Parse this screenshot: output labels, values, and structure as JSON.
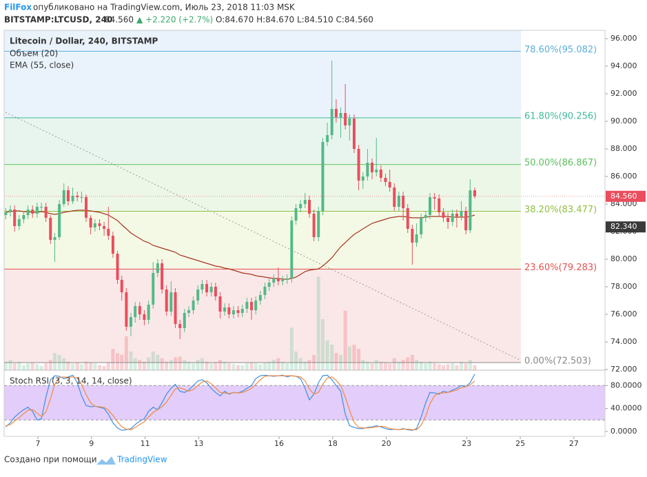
{
  "header": {
    "brand": "FilFox",
    "published": "опубликовано на TradingView.com, Июль 23, 2018 11:03 MSK",
    "symbol": "BITSTAMP:LTCUSD, 240",
    "price": "84.560",
    "change": "▲ +2.220 (+2.7%)",
    "ohlc": "O:84.670 H:84.670 L:84.510 C:84.560"
  },
  "chart_data": {
    "type": "candlestick",
    "title": "Litecoin / Dollar, 240, BITSTAMP",
    "up_color": "#53b987",
    "down_color": "#eb4d5c",
    "x": [
      5.8,
      5.97,
      6.13,
      6.3,
      6.47,
      6.63,
      6.8,
      6.97,
      7.13,
      7.3,
      7.47,
      7.63,
      7.8,
      7.97,
      8.13,
      8.3,
      8.47,
      8.63,
      8.8,
      8.97,
      9.13,
      9.3,
      9.47,
      9.63,
      9.8,
      9.97,
      10.13,
      10.3,
      10.47,
      10.63,
      10.8,
      10.97,
      11.13,
      11.3,
      11.47,
      11.63,
      11.8,
      11.97,
      12.13,
      12.3,
      12.47,
      12.63,
      12.8,
      12.97,
      13.13,
      13.3,
      13.47,
      13.63,
      13.8,
      13.97,
      14.13,
      14.3,
      14.47,
      14.63,
      14.8,
      14.97,
      15.13,
      15.3,
      15.47,
      15.63,
      15.8,
      15.97,
      16.13,
      16.3,
      16.47,
      16.63,
      16.8,
      16.97,
      17.13,
      17.3,
      17.47,
      17.63,
      17.8,
      17.97,
      18.13,
      18.3,
      18.47,
      18.63,
      18.8,
      18.97,
      19.13,
      19.3,
      19.47,
      19.63,
      19.8,
      19.97,
      20.13,
      20.3,
      20.47,
      20.63,
      20.8,
      20.97,
      21.13,
      21.3,
      21.47,
      21.63,
      21.8,
      21.97,
      22.13,
      22.3,
      22.47,
      22.63,
      22.8,
      22.97,
      23.13,
      23.3
    ],
    "open": [
      83.2,
      83.4,
      83.6,
      82.4,
      82.9,
      83.2,
      83.6,
      83.3,
      83.8,
      83.8,
      83.0,
      81.4,
      81.6,
      84.0,
      85.0,
      84.2,
      84.6,
      84.5,
      84.5,
      83.0,
      82.3,
      82.6,
      82.4,
      82.2,
      81.7,
      80.4,
      78.5,
      77.6,
      75.1,
      75.8,
      76.6,
      76.0,
      75.6,
      76.7,
      79.0,
      79.7,
      77.8,
      76.2,
      77.6,
      75.3,
      75.0,
      76.1,
      76.3,
      77.0,
      77.8,
      78.2,
      77.6,
      78.0,
      77.3,
      76.2,
      76.5,
      76.0,
      76.3,
      76.1,
      76.4,
      76.9,
      76.3,
      77.0,
      77.4,
      78.0,
      78.3,
      78.6,
      78.4,
      78.5,
      78.6,
      82.8,
      83.7,
      84.0,
      84.3,
      83.3,
      81.6,
      83.5,
      88.5,
      89.0,
      90.9,
      90.3,
      90.6,
      89.7,
      90.2,
      88.0,
      85.7,
      86.0,
      87.0,
      86.3,
      86.5,
      85.9,
      85.6,
      85.2,
      83.8,
      84.6,
      83.7,
      82.2,
      81.2,
      81.8,
      83.0,
      83.2,
      84.5,
      84.4,
      83.4,
      83.0,
      82.7,
      83.3,
      83.1,
      83.5,
      82.1,
      85.0
    ],
    "high": [
      83.7,
      83.9,
      83.9,
      83.2,
      83.5,
      83.9,
      83.9,
      84.1,
      84.1,
      84.1,
      83.2,
      81.9,
      84.3,
      85.5,
      85.3,
      85.2,
      84.9,
      84.9,
      84.7,
      83.2,
      82.9,
      82.9,
      82.7,
      83.8,
      82.0,
      80.6,
      78.8,
      77.9,
      76.1,
      76.9,
      76.9,
      76.3,
      77.0,
      79.8,
      80.0,
      80.0,
      78.1,
      78.4,
      77.9,
      75.6,
      76.4,
      76.6,
      77.3,
      78.1,
      78.5,
      78.5,
      78.3,
      78.3,
      77.6,
      76.8,
      76.8,
      76.6,
      76.6,
      76.7,
      77.2,
      77.2,
      77.3,
      77.7,
      78.3,
      78.6,
      78.9,
      79.4,
      78.8,
      78.9,
      83.1,
      84.0,
      84.3,
      84.8,
      84.6,
      83.6,
      83.8,
      88.8,
      89.9,
      94.4,
      91.6,
      91.0,
      92.7,
      90.5,
      90.5,
      88.3,
      86.3,
      88.0,
      87.3,
      88.8,
      86.8,
      86.2,
      86.5,
      85.5,
      84.9,
      84.9,
      84.0,
      82.5,
      82.6,
      83.3,
      83.5,
      84.8,
      84.8,
      84.7,
      83.7,
      83.4,
      83.6,
      83.6,
      84.2,
      83.8,
      85.8,
      85.2
    ],
    "low": [
      82.9,
      83.1,
      82.0,
      82.1,
      82.6,
      82.9,
      83.0,
      83.0,
      83.5,
      82.7,
      81.1,
      79.8,
      81.4,
      83.8,
      83.9,
      84.0,
      84.2,
      84.1,
      82.7,
      81.8,
      82.0,
      82.1,
      81.7,
      81.4,
      80.1,
      78.2,
      77.0,
      74.8,
      74.4,
      75.4,
      75.6,
      75.2,
      75.3,
      76.4,
      78.7,
      77.5,
      75.9,
      75.9,
      75.0,
      74.2,
      74.7,
      75.8,
      76.0,
      76.7,
      77.5,
      77.3,
      77.3,
      77.0,
      75.7,
      75.9,
      75.7,
      75.7,
      75.8,
      75.8,
      76.1,
      75.6,
      76.0,
      76.7,
      77.1,
      77.7,
      78.0,
      78.1,
      78.1,
      78.2,
      78.3,
      82.5,
      83.4,
      83.7,
      83.0,
      81.3,
      81.3,
      83.2,
      88.2,
      88.7,
      89.9,
      88.8,
      89.4,
      88.6,
      87.7,
      85.0,
      85.1,
      85.7,
      85.8,
      86.0,
      85.6,
      85.3,
      84.9,
      83.5,
      83.5,
      82.8,
      81.9,
      79.6,
      80.9,
      81.5,
      82.7,
      82.9,
      83.6,
      83.1,
      82.7,
      82.2,
      82.4,
      82.3,
      82.8,
      81.8,
      81.9,
      84.4
    ],
    "close": [
      83.4,
      83.6,
      82.4,
      82.9,
      83.2,
      83.6,
      83.3,
      83.8,
      83.8,
      83.0,
      81.4,
      81.6,
      84.0,
      85.0,
      84.2,
      84.6,
      84.5,
      84.5,
      83.0,
      82.3,
      82.6,
      82.4,
      82.2,
      81.7,
      80.4,
      78.5,
      77.6,
      75.1,
      75.8,
      76.6,
      76.0,
      75.6,
      76.7,
      79.0,
      79.7,
      77.8,
      76.2,
      77.6,
      75.3,
      75.0,
      76.1,
      76.3,
      77.0,
      77.8,
      78.2,
      77.6,
      78.0,
      77.3,
      76.2,
      76.5,
      76.0,
      76.3,
      76.1,
      76.4,
      76.9,
      76.3,
      77.0,
      77.4,
      78.0,
      78.3,
      78.6,
      78.4,
      78.5,
      78.6,
      82.8,
      83.7,
      84.0,
      84.3,
      83.3,
      81.6,
      83.5,
      88.5,
      89.0,
      90.9,
      90.3,
      90.6,
      89.7,
      90.2,
      88.0,
      85.7,
      86.0,
      87.0,
      86.3,
      86.5,
      85.9,
      85.6,
      85.2,
      83.8,
      84.6,
      83.7,
      82.2,
      81.2,
      81.8,
      83.0,
      83.2,
      84.5,
      84.4,
      83.4,
      83.0,
      82.7,
      83.3,
      83.1,
      83.5,
      82.1,
      85.0,
      84.56
    ],
    "xlim": [
      5.74,
      28.16
    ],
    "xticks": [
      7,
      9,
      11,
      13,
      16,
      18,
      20,
      23,
      25,
      27
    ],
    "ylim": [
      71.95,
      96.6
    ],
    "yticks": [
      {
        "value": 96,
        "label": "96.000"
      },
      {
        "value": 94,
        "label": "94.000"
      },
      {
        "value": 92,
        "label": "92.000"
      },
      {
        "value": 90,
        "label": "90.000"
      },
      {
        "value": 88,
        "label": "88.000"
      },
      {
        "value": 86,
        "label": "86.000"
      },
      {
        "value": 84,
        "label": "84.000"
      },
      {
        "value": 82,
        "label": "82.000"
      },
      {
        "value": 80,
        "label": "80.000"
      },
      {
        "value": 78,
        "label": "78.000"
      },
      {
        "value": 76,
        "label": "76.000"
      },
      {
        "value": 74,
        "label": "74.000"
      },
      {
        "value": 72,
        "label": "72.000"
      }
    ],
    "volume": {
      "name": "Объем (20)",
      "ylim": [
        0,
        400
      ],
      "values": [
        10,
        12,
        8,
        10,
        6,
        8,
        9,
        7,
        5,
        8,
        12,
        20,
        18,
        14,
        10,
        8,
        9,
        7,
        10,
        9,
        8,
        6,
        5,
        9,
        25,
        20,
        18,
        40,
        22,
        14,
        12,
        10,
        15,
        22,
        18,
        14,
        10,
        12,
        15,
        16,
        12,
        10,
        8,
        12,
        14,
        10,
        8,
        9,
        12,
        10,
        8,
        7,
        6,
        6,
        8,
        9,
        8,
        7,
        9,
        10,
        12,
        14,
        10,
        8,
        50,
        22,
        14,
        10,
        12,
        18,
        110,
        60,
        35,
        30,
        20,
        18,
        70,
        28,
        30,
        25,
        12,
        10,
        8,
        12,
        10,
        9,
        8,
        14,
        10,
        12,
        15,
        18,
        12,
        10,
        8,
        10,
        8,
        7,
        6,
        7,
        8,
        6,
        10,
        8,
        12,
        6
      ]
    },
    "ema": {
      "name": "EMA (55, close)",
      "color": "#a5351c",
      "values": [
        83.4,
        83.45,
        83.5,
        83.5,
        83.45,
        83.45,
        83.4,
        83.4,
        83.45,
        83.4,
        83.3,
        83.25,
        83.3,
        83.4,
        83.45,
        83.5,
        83.55,
        83.55,
        83.55,
        83.5,
        83.45,
        83.4,
        83.3,
        83.2,
        83.0,
        82.8,
        82.5,
        82.2,
        81.9,
        81.7,
        81.5,
        81.3,
        81.2,
        81.0,
        80.9,
        80.8,
        80.7,
        80.6,
        80.5,
        80.3,
        80.2,
        80.1,
        80.0,
        79.9,
        79.8,
        79.7,
        79.6,
        79.5,
        79.45,
        79.35,
        79.3,
        79.2,
        79.1,
        79.0,
        78.95,
        78.9,
        78.8,
        78.75,
        78.7,
        78.65,
        78.6,
        78.6,
        78.55,
        78.55,
        78.6,
        78.7,
        78.9,
        79.1,
        79.2,
        79.25,
        79.3,
        79.5,
        79.8,
        80.1,
        80.5,
        80.9,
        81.2,
        81.5,
        81.8,
        82.0,
        82.2,
        82.4,
        82.6,
        82.7,
        82.8,
        82.9,
        83.0,
        83.05,
        83.1,
        83.1,
        83.05,
        83.0,
        83.0,
        83.0,
        83.05,
        83.1,
        83.1,
        83.1,
        83.1,
        83.1,
        83.05,
        83.05,
        83.05,
        83.05,
        83.1,
        83.2
      ]
    },
    "fib": [
      {
        "value": 95.082,
        "label": "78.60%(95.082)",
        "color": "#5aaedb",
        "fill": "#eaf3fb"
      },
      {
        "value": 90.256,
        "label": "61.80%(90.256)",
        "color": "#3fb99a",
        "fill": "#e8f5ef"
      },
      {
        "value": 86.867,
        "label": "50.00%(86.867)",
        "color": "#5cbf5c",
        "fill": "#ecf7e8"
      },
      {
        "value": 83.477,
        "label": "38.20%(83.477)",
        "color": "#8fbf3f",
        "fill": "#f4f9e6"
      },
      {
        "value": 79.283,
        "label": "23.60%(79.283)",
        "color": "#e05252",
        "fill": "#fae8e8"
      },
      {
        "value": 72.503,
        "label": "0.00%(72.503)",
        "color": "#888888",
        "fill": "#ffffff"
      }
    ],
    "price_tags": [
      {
        "value": 84.56,
        "label": "84.560",
        "color": "#eb4d5c"
      },
      {
        "value": 82.34,
        "label": "82.340",
        "color": "#3a3a3a"
      }
    ],
    "stoch": {
      "title": "Stoch RSI (3, 3, 14, 14, close)",
      "ylim": [
        -8.5,
        106.7
      ],
      "band": [
        20,
        80
      ],
      "band_color": "#e3cdfa",
      "yticks": [
        {
          "value": 80,
          "label": "80.0000"
        },
        {
          "value": 40,
          "label": "40.0000"
        },
        {
          "value": 0,
          "label": "0.0000"
        }
      ],
      "series": [
        {
          "color": "#3d8ee0",
          "values": [
            8,
            15,
            25,
            32,
            38,
            42,
            35,
            20,
            22,
            60,
            90,
            97,
            96,
            92,
            95,
            98,
            85,
            62,
            45,
            43,
            44,
            42,
            40,
            30,
            15,
            6,
            2,
            3,
            5,
            12,
            18,
            22,
            35,
            42,
            38,
            50,
            65,
            75,
            82,
            70,
            68,
            72,
            80,
            88,
            90,
            85,
            75,
            68,
            62,
            70,
            65,
            68,
            67,
            70,
            75,
            80,
            92,
            97,
            98,
            97,
            96,
            97,
            98,
            95,
            97,
            96,
            92,
            75,
            55,
            65,
            85,
            97,
            98,
            90,
            80,
            70,
            30,
            10,
            7,
            5,
            5,
            7,
            8,
            10,
            8,
            5,
            3,
            4,
            3,
            5,
            3,
            2,
            5,
            25,
            50,
            68,
            67,
            65,
            70,
            68,
            72,
            75,
            80,
            78,
            85,
            100
          ]
        },
        {
          "color": "#f08a3e",
          "values": [
            10,
            12,
            18,
            24,
            31,
            37,
            38,
            32,
            26,
            34,
            57,
            82,
            94,
            95,
            94,
            95,
            93,
            82,
            64,
            50,
            44,
            43,
            42,
            37,
            28,
            17,
            8,
            4,
            3,
            7,
            12,
            17,
            25,
            33,
            38,
            43,
            51,
            63,
            74,
            76,
            73,
            70,
            73,
            80,
            86,
            88,
            83,
            76,
            68,
            67,
            66,
            68,
            67,
            68,
            71,
            75,
            82,
            90,
            96,
            97,
            97,
            97,
            97,
            97,
            97,
            96,
            95,
            88,
            74,
            65,
            68,
            82,
            93,
            95,
            89,
            80,
            60,
            37,
            16,
            7,
            6,
            6,
            7,
            8,
            9,
            8,
            5,
            4,
            3,
            4,
            4,
            3,
            3,
            11,
            27,
            48,
            62,
            67,
            67,
            68,
            70,
            72,
            76,
            78,
            81,
            88
          ]
        }
      ]
    }
  },
  "footer": {
    "text": "Создано при помощи",
    "logo": "TradingView"
  }
}
